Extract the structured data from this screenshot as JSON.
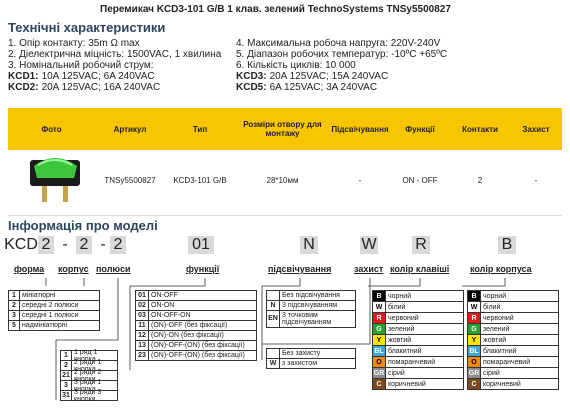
{
  "title": "Перемикач KCD3-101 G/B 1 клав. зелений TechnoSystems TNSy5500827",
  "specs": {
    "heading": "Технічні характеристики",
    "left": [
      "1. Опір контакту: 35m Ω  max",
      "2. Діелектрична міцність:  1500VAC, 1 хвилина",
      "3. Номінальний робочий струм:"
    ],
    "left_models": [
      {
        "model": "KCD1:",
        "text": "10A 125VAC; 6A 240VAC"
      },
      {
        "model": "KCD2:",
        "text": "20A 125VAC; 16A 240VAC"
      }
    ],
    "right": [
      "4. Максимальна робоча напруга: 220V-240V",
      "5. Діапазон робочих температур: -10ºC +65ºC",
      "6. Кількість циклів: 10 000"
    ],
    "right_models": [
      {
        "model": "KCD3:",
        "text": "20A 125VAC; 15A 240VAC"
      },
      {
        "model": "KCD5:",
        "text": "6A 125VAC; 3A 240VAC"
      }
    ]
  },
  "table": {
    "headers": [
      "Фото",
      "Артикул",
      "Тип",
      "Розміри отвору для монтажу",
      "Підсвічування",
      "Функції",
      "Контакти",
      "Захист"
    ],
    "row": [
      "TNSy5500827",
      "KCD3-101 G/B",
      "28*10мм",
      "-",
      "ON - OFF",
      "2",
      "-"
    ]
  },
  "model_info": {
    "heading": "Інформація про моделі",
    "code": [
      "KCD",
      "2",
      "-",
      "2",
      "-",
      "2",
      "01",
      "N",
      "W",
      "R",
      "B"
    ],
    "labels": [
      "форма",
      "корпус",
      "полюси",
      "функції",
      "підсвічування",
      "захист",
      "колір клавіші",
      "колір корпуса"
    ],
    "form": [
      [
        "1",
        "мініатюрні"
      ],
      [
        "2",
        "середні 2 полюси"
      ],
      [
        "3",
        "середні 1 полюси"
      ],
      [
        "5",
        "надмініатюрні"
      ]
    ],
    "poles": [
      [
        "1",
        "1 ряд 1 кнопка"
      ],
      [
        "2",
        "2 ряди 1 кнопка"
      ],
      [
        "21",
        "2 ряди 2 кнопки"
      ],
      [
        "3",
        "3 ряди 1 кнопка"
      ],
      [
        "31",
        "3 ряди 3 кнопки"
      ]
    ],
    "functions": [
      [
        "01",
        "ON-OFF"
      ],
      [
        "02",
        "ON-ON"
      ],
      [
        "03",
        "ON-OFF-ON"
      ],
      [
        "11",
        "(ON)-OFF (без фіксації)"
      ],
      [
        "12",
        "(ON)-ON (без фіксації)"
      ],
      [
        "13",
        "(ON)-OFF-(ON) (без фіксації)"
      ],
      [
        "23",
        "(ON)-OFF-(ON) (без фіксації)"
      ]
    ],
    "lighting": [
      [
        "Без підсвічування"
      ],
      [
        "N",
        "3 підсвічуванням"
      ],
      [
        "EN",
        "3 точковим підсвічуванням"
      ]
    ],
    "protection": [
      [
        "Без захисту"
      ],
      [
        "W",
        "з захистом"
      ]
    ],
    "key_colors": [
      {
        "code": "B",
        "label": "чорний",
        "color": "#000000"
      },
      {
        "code": "W",
        "label": "білий",
        "color": "#ffffff"
      },
      {
        "code": "R",
        "label": "червоний",
        "color": "#e21b1b"
      },
      {
        "code": "G",
        "label": "зелений",
        "color": "#2aa033"
      },
      {
        "code": "Y",
        "label": "жовтий",
        "color": "#ffe600"
      },
      {
        "code": "BL",
        "label": "блакитний",
        "color": "#3aa8dd"
      },
      {
        "code": "O",
        "label": "помаранчевий",
        "color": "#f08a14"
      },
      {
        "code": "GR",
        "label": "сірий",
        "color": "#8c8c8c"
      },
      {
        "code": "C",
        "label": "коричневий",
        "color": "#7a4a1c"
      }
    ],
    "body_colors": [
      {
        "code": "B",
        "label": "чорний",
        "color": "#000000"
      },
      {
        "code": "W",
        "label": "білий",
        "color": "#ffffff"
      },
      {
        "code": "R",
        "label": "червоний",
        "color": "#e21b1b"
      },
      {
        "code": "G",
        "label": "зелений",
        "color": "#2aa033"
      },
      {
        "code": "Y",
        "label": "жовтий",
        "color": "#ffe600"
      },
      {
        "code": "BL",
        "label": "блакитний",
        "color": "#3aa8dd"
      },
      {
        "code": "O",
        "label": "помаранчевий",
        "color": "#f08a14"
      },
      {
        "code": "GR",
        "label": "сірий",
        "color": "#8c8c8c"
      },
      {
        "code": "C",
        "label": "коричневий",
        "color": "#7a4a1c"
      }
    ]
  }
}
